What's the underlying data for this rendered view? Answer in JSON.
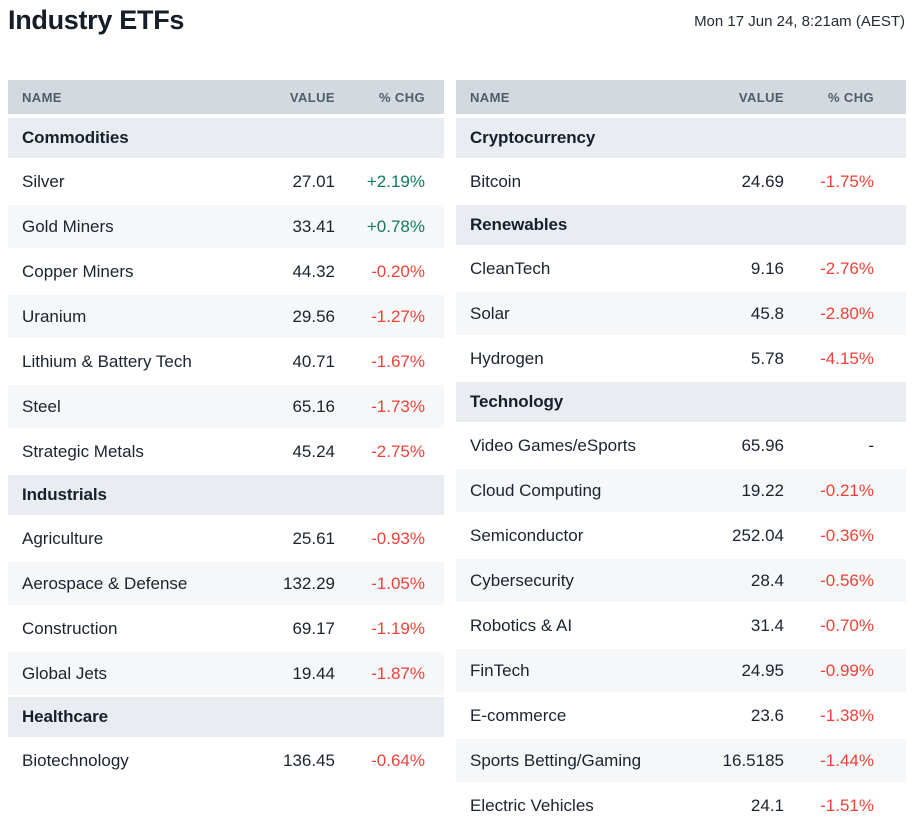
{
  "header": {
    "title": "Industry ETFs",
    "timestamp": "Mon 17 Jun 24, 8:21am (AEST)"
  },
  "table_columns": {
    "name": "NAME",
    "value": "VALUE",
    "chg": "% CHG"
  },
  "colors": {
    "positive": "#0f7b5f",
    "negative": "#ee4237",
    "neutral_change": "#1a232e",
    "header_bg": "#d3d9de",
    "header_text": "#4e5d6b",
    "section_bg": "#e9edf1",
    "stripe_bg": "#f5f7f8",
    "text": "#1a232e"
  },
  "tables": [
    {
      "id": "left",
      "sections": [
        {
          "title": "Commodities",
          "rows": [
            {
              "name": "Silver",
              "value": "27.01",
              "chg": "+2.19%",
              "dir": "up"
            },
            {
              "name": "Gold Miners",
              "value": "33.41",
              "chg": "+0.78%",
              "dir": "up"
            },
            {
              "name": "Copper Miners",
              "value": "44.32",
              "chg": "-0.20%",
              "dir": "down"
            },
            {
              "name": "Uranium",
              "value": "29.56",
              "chg": "-1.27%",
              "dir": "down"
            },
            {
              "name": "Lithium & Battery Tech",
              "value": "40.71",
              "chg": "-1.67%",
              "dir": "down"
            },
            {
              "name": "Steel",
              "value": "65.16",
              "chg": "-1.73%",
              "dir": "down"
            },
            {
              "name": "Strategic Metals",
              "value": "45.24",
              "chg": "-2.75%",
              "dir": "down"
            }
          ]
        },
        {
          "title": "Industrials",
          "rows": [
            {
              "name": "Agriculture",
              "value": "25.61",
              "chg": "-0.93%",
              "dir": "down"
            },
            {
              "name": "Aerospace & Defense",
              "value": "132.29",
              "chg": "-1.05%",
              "dir": "down"
            },
            {
              "name": "Construction",
              "value": "69.17",
              "chg": "-1.19%",
              "dir": "down"
            },
            {
              "name": "Global Jets",
              "value": "19.44",
              "chg": "-1.87%",
              "dir": "down"
            }
          ]
        },
        {
          "title": "Healthcare",
          "rows": [
            {
              "name": "Biotechnology",
              "value": "136.45",
              "chg": "-0.64%",
              "dir": "down"
            }
          ]
        }
      ]
    },
    {
      "id": "right",
      "sections": [
        {
          "title": "Cryptocurrency",
          "rows": [
            {
              "name": "Bitcoin",
              "value": "24.69",
              "chg": "-1.75%",
              "dir": "down"
            }
          ]
        },
        {
          "title": "Renewables",
          "rows": [
            {
              "name": "CleanTech",
              "value": "9.16",
              "chg": "-2.76%",
              "dir": "down"
            },
            {
              "name": "Solar",
              "value": "45.8",
              "chg": "-2.80%",
              "dir": "down"
            },
            {
              "name": "Hydrogen",
              "value": "5.78",
              "chg": "-4.15%",
              "dir": "down"
            }
          ]
        },
        {
          "title": "Technology",
          "rows": [
            {
              "name": "Video Games/eSports",
              "value": "65.96",
              "chg": "-",
              "dir": "neutral"
            },
            {
              "name": "Cloud Computing",
              "value": "19.22",
              "chg": "-0.21%",
              "dir": "down"
            },
            {
              "name": "Semiconductor",
              "value": "252.04",
              "chg": "-0.36%",
              "dir": "down"
            },
            {
              "name": "Cybersecurity",
              "value": "28.4",
              "chg": "-0.56%",
              "dir": "down"
            },
            {
              "name": "Robotics & AI",
              "value": "31.4",
              "chg": "-0.70%",
              "dir": "down"
            },
            {
              "name": "FinTech",
              "value": "24.95",
              "chg": "-0.99%",
              "dir": "down"
            },
            {
              "name": "E-commerce",
              "value": "23.6",
              "chg": "-1.38%",
              "dir": "down"
            },
            {
              "name": "Sports Betting/Gaming",
              "value": "16.5185",
              "chg": "-1.44%",
              "dir": "down"
            },
            {
              "name": "Electric Vehicles",
              "value": "24.1",
              "chg": "-1.51%",
              "dir": "down"
            }
          ]
        }
      ]
    }
  ]
}
